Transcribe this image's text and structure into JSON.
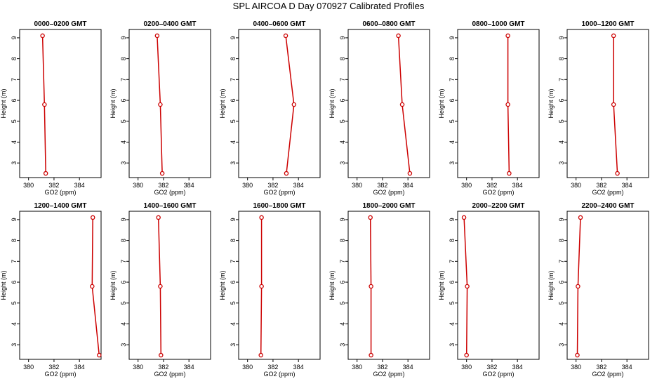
{
  "title": "SPL AIRCOA D  Day 070927  Calibrated Profiles",
  "colors": {
    "line": "#cc0000",
    "axis": "#000000"
  },
  "chart_data": [
    {
      "type": "line",
      "title": "0000–0200 GMT",
      "xlabel": "GO2 (ppm)",
      "ylabel": "Height (m)",
      "xlim": [
        379.3,
        385.7
      ],
      "ylim": [
        2.3,
        9.4
      ],
      "xticks": [
        380,
        382,
        384
      ],
      "yticks": [
        3,
        4,
        5,
        6,
        7,
        8,
        9
      ],
      "grid": false,
      "x": [
        381.1,
        381.25,
        381.35
      ],
      "y": [
        9.1,
        5.8,
        2.5
      ]
    },
    {
      "type": "line",
      "title": "0200–0400 GMT",
      "xlabel": "GO2 (ppm)",
      "ylabel": "Height (m)",
      "xlim": [
        379.3,
        385.7
      ],
      "ylim": [
        2.3,
        9.4
      ],
      "xticks": [
        380,
        382,
        384
      ],
      "yticks": [
        3,
        4,
        5,
        6,
        7,
        8,
        9
      ],
      "grid": false,
      "x": [
        381.5,
        381.75,
        381.9
      ],
      "y": [
        9.1,
        5.8,
        2.5
      ]
    },
    {
      "type": "line",
      "title": "0400–0600 GMT",
      "xlabel": "GO2 (ppm)",
      "ylabel": "Height (m)",
      "xlim": [
        379.3,
        385.7
      ],
      "ylim": [
        2.3,
        9.4
      ],
      "xticks": [
        380,
        382,
        384
      ],
      "yticks": [
        3,
        4,
        5,
        6,
        7,
        8,
        9
      ],
      "grid": false,
      "x": [
        383.0,
        383.65,
        383.05
      ],
      "y": [
        9.1,
        5.8,
        2.5
      ]
    },
    {
      "type": "line",
      "title": "0600–0800 GMT",
      "xlabel": "GO2 (ppm)",
      "ylabel": "Height (m)",
      "xlim": [
        379.3,
        385.7
      ],
      "ylim": [
        2.3,
        9.4
      ],
      "xticks": [
        380,
        382,
        384
      ],
      "yticks": [
        3,
        4,
        5,
        6,
        7,
        8,
        9
      ],
      "grid": false,
      "x": [
        383.25,
        383.55,
        384.15
      ],
      "y": [
        9.1,
        5.8,
        2.5
      ]
    },
    {
      "type": "line",
      "title": "0800–1000 GMT",
      "xlabel": "GO2 (ppm)",
      "ylabel": "Height (m)",
      "xlim": [
        379.3,
        385.7
      ],
      "ylim": [
        2.3,
        9.4
      ],
      "xticks": [
        380,
        382,
        384
      ],
      "yticks": [
        3,
        4,
        5,
        6,
        7,
        8,
        9
      ],
      "grid": false,
      "x": [
        383.25,
        383.25,
        383.35
      ],
      "y": [
        9.1,
        5.8,
        2.5
      ]
    },
    {
      "type": "line",
      "title": "1000–1200 GMT",
      "xlabel": "GO2 (ppm)",
      "ylabel": "Height (m)",
      "xlim": [
        379.3,
        385.7
      ],
      "ylim": [
        2.3,
        9.4
      ],
      "xticks": [
        380,
        382,
        384
      ],
      "yticks": [
        3,
        4,
        5,
        6,
        7,
        8,
        9
      ],
      "grid": false,
      "x": [
        382.95,
        382.95,
        383.25
      ],
      "y": [
        9.1,
        5.8,
        2.5
      ]
    },
    {
      "type": "line",
      "title": "1200–1400 GMT",
      "xlabel": "GO2 (ppm)",
      "ylabel": "Height (m)",
      "xlim": [
        379.3,
        385.7
      ],
      "ylim": [
        2.3,
        9.4
      ],
      "xticks": [
        380,
        382,
        384
      ],
      "yticks": [
        3,
        4,
        5,
        6,
        7,
        8,
        9
      ],
      "grid": false,
      "x": [
        385.05,
        385.0,
        385.55
      ],
      "y": [
        9.1,
        5.8,
        2.5
      ]
    },
    {
      "type": "line",
      "title": "1400–1600 GMT",
      "xlabel": "GO2 (ppm)",
      "ylabel": "Height (m)",
      "xlim": [
        379.3,
        385.7
      ],
      "ylim": [
        2.3,
        9.4
      ],
      "xticks": [
        380,
        382,
        384
      ],
      "yticks": [
        3,
        4,
        5,
        6,
        7,
        8,
        9
      ],
      "grid": false,
      "x": [
        381.6,
        381.75,
        381.8
      ],
      "y": [
        9.1,
        5.8,
        2.5
      ]
    },
    {
      "type": "line",
      "title": "1600–1800 GMT",
      "xlabel": "GO2 (ppm)",
      "ylabel": "Height (m)",
      "xlim": [
        379.3,
        385.7
      ],
      "ylim": [
        2.3,
        9.4
      ],
      "xticks": [
        380,
        382,
        384
      ],
      "yticks": [
        3,
        4,
        5,
        6,
        7,
        8,
        9
      ],
      "grid": false,
      "x": [
        381.1,
        381.1,
        381.05
      ],
      "y": [
        9.1,
        5.8,
        2.5
      ]
    },
    {
      "type": "line",
      "title": "1800–2000 GMT",
      "xlabel": "GO2 (ppm)",
      "ylabel": "Height (m)",
      "xlim": [
        379.3,
        385.7
      ],
      "ylim": [
        2.3,
        9.4
      ],
      "xticks": [
        380,
        382,
        384
      ],
      "yticks": [
        3,
        4,
        5,
        6,
        7,
        8,
        9
      ],
      "grid": false,
      "x": [
        381.05,
        381.1,
        381.1
      ],
      "y": [
        9.1,
        5.8,
        2.5
      ]
    },
    {
      "type": "line",
      "title": "2000–2200 GMT",
      "xlabel": "GO2 (ppm)",
      "ylabel": "Height (m)",
      "xlim": [
        379.3,
        385.7
      ],
      "ylim": [
        2.3,
        9.4
      ],
      "xticks": [
        380,
        382,
        384
      ],
      "yticks": [
        3,
        4,
        5,
        6,
        7,
        8,
        9
      ],
      "grid": false,
      "x": [
        379.8,
        380.05,
        380.0
      ],
      "y": [
        9.1,
        5.8,
        2.5
      ]
    },
    {
      "type": "line",
      "title": "2200–2400 GMT",
      "xlabel": "GO2 (ppm)",
      "ylabel": "Height (m)",
      "xlim": [
        379.3,
        385.7
      ],
      "ylim": [
        2.3,
        9.4
      ],
      "xticks": [
        380,
        382,
        384
      ],
      "yticks": [
        3,
        4,
        5,
        6,
        7,
        8,
        9
      ],
      "grid": false,
      "x": [
        380.35,
        380.15,
        380.1
      ],
      "y": [
        9.1,
        5.8,
        2.5
      ]
    }
  ]
}
